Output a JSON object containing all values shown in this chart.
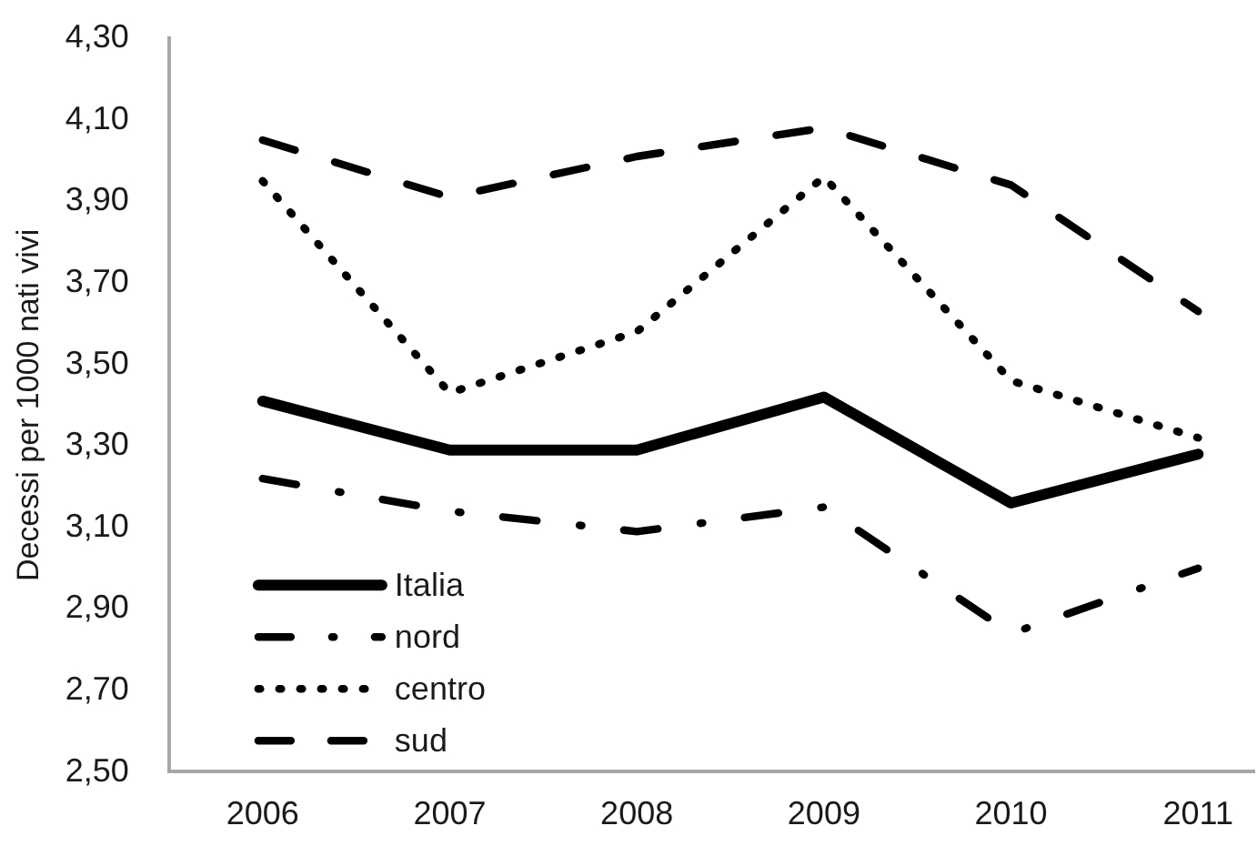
{
  "chart_data": {
    "type": "line",
    "categories": [
      "2006",
      "2007",
      "2008",
      "2009",
      "2010",
      "2011"
    ],
    "ylabel": "Decessi per 1000 nati vivi",
    "ylim": [
      2.5,
      4.3
    ],
    "yticks": [
      {
        "value": 2.5,
        "label": "2,50"
      },
      {
        "value": 2.7,
        "label": "2,70"
      },
      {
        "value": 2.9,
        "label": "2,90"
      },
      {
        "value": 3.1,
        "label": "3,10"
      },
      {
        "value": 3.3,
        "label": "3,30"
      },
      {
        "value": 3.5,
        "label": "3,50"
      },
      {
        "value": 3.7,
        "label": "3,70"
      },
      {
        "value": 3.9,
        "label": "3,90"
      },
      {
        "value": 4.1,
        "label": "4,10"
      },
      {
        "value": 4.3,
        "label": "4,30"
      }
    ],
    "series": [
      {
        "name": "Italia",
        "color": "#000000",
        "line_style": "solid",
        "values": [
          3.41,
          3.29,
          3.29,
          3.42,
          3.16,
          3.28
        ]
      },
      {
        "name": "nord",
        "color": "#000000",
        "line_style": "dashdot",
        "values": [
          3.22,
          3.14,
          3.09,
          3.15,
          2.84,
          3.0
        ]
      },
      {
        "name": "centro",
        "color": "#000000",
        "line_style": "dotted",
        "values": [
          3.95,
          3.43,
          3.58,
          3.96,
          3.46,
          3.32
        ]
      },
      {
        "name": "sud",
        "color": "#000000",
        "line_style": "dashed",
        "values": [
          4.05,
          3.91,
          4.01,
          4.08,
          3.94,
          3.63
        ]
      }
    ],
    "grid": false,
    "legend": "bottom left",
    "marker": "none"
  }
}
